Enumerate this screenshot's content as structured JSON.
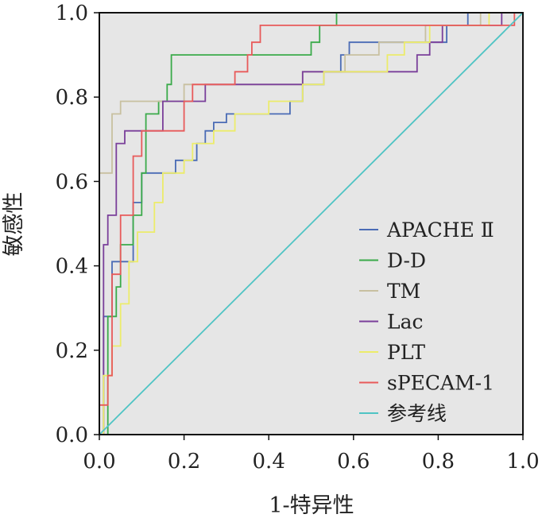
{
  "chart_data": {
    "type": "line",
    "title": "",
    "xlabel": "1-特异性",
    "ylabel": "敏感性",
    "xlim": [
      0,
      1
    ],
    "ylim": [
      0,
      1
    ],
    "xticks": [
      "0.0",
      "0.2",
      "0.4",
      "0.6",
      "0.8",
      "1.0"
    ],
    "yticks": [
      "0.0",
      "0.2",
      "0.4",
      "0.6",
      "0.8",
      "1.0"
    ],
    "grid": false,
    "legend_position": "lower-right",
    "series": [
      {
        "name": "APACHE Ⅱ",
        "color": "#4a6bb5",
        "points": [
          [
            0,
            0
          ],
          [
            0.01,
            0
          ],
          [
            0.01,
            0.28
          ],
          [
            0.03,
            0.28
          ],
          [
            0.03,
            0.41
          ],
          [
            0.08,
            0.41
          ],
          [
            0.08,
            0.55
          ],
          [
            0.1,
            0.55
          ],
          [
            0.1,
            0.62
          ],
          [
            0.18,
            0.62
          ],
          [
            0.18,
            0.65
          ],
          [
            0.23,
            0.65
          ],
          [
            0.23,
            0.69
          ],
          [
            0.25,
            0.69
          ],
          [
            0.25,
            0.72
          ],
          [
            0.27,
            0.72
          ],
          [
            0.27,
            0.74
          ],
          [
            0.3,
            0.74
          ],
          [
            0.3,
            0.76
          ],
          [
            0.45,
            0.76
          ],
          [
            0.45,
            0.79
          ],
          [
            0.48,
            0.79
          ],
          [
            0.48,
            0.83
          ],
          [
            0.53,
            0.83
          ],
          [
            0.53,
            0.86
          ],
          [
            0.57,
            0.86
          ],
          [
            0.57,
            0.9
          ],
          [
            0.59,
            0.9
          ],
          [
            0.59,
            0.93
          ],
          [
            0.82,
            0.93
          ],
          [
            0.82,
            0.97
          ],
          [
            0.87,
            0.97
          ],
          [
            0.87,
            1
          ],
          [
            1,
            1
          ]
        ]
      },
      {
        "name": "D-D",
        "color": "#3aaa4a",
        "points": [
          [
            0,
            0
          ],
          [
            0.02,
            0
          ],
          [
            0.02,
            0.28
          ],
          [
            0.04,
            0.28
          ],
          [
            0.04,
            0.35
          ],
          [
            0.05,
            0.35
          ],
          [
            0.05,
            0.45
          ],
          [
            0.08,
            0.45
          ],
          [
            0.08,
            0.52
          ],
          [
            0.1,
            0.52
          ],
          [
            0.1,
            0.62
          ],
          [
            0.11,
            0.62
          ],
          [
            0.11,
            0.76
          ],
          [
            0.14,
            0.76
          ],
          [
            0.14,
            0.79
          ],
          [
            0.16,
            0.79
          ],
          [
            0.16,
            0.83
          ],
          [
            0.17,
            0.83
          ],
          [
            0.17,
            0.9
          ],
          [
            0.5,
            0.9
          ],
          [
            0.5,
            0.93
          ],
          [
            0.52,
            0.93
          ],
          [
            0.52,
            0.97
          ],
          [
            0.56,
            0.97
          ],
          [
            0.56,
            1
          ],
          [
            1,
            1
          ]
        ]
      },
      {
        "name": "TM",
        "color": "#c8c0a0",
        "points": [
          [
            0,
            0
          ],
          [
            0,
            0.62
          ],
          [
            0.03,
            0.62
          ],
          [
            0.03,
            0.76
          ],
          [
            0.05,
            0.76
          ],
          [
            0.05,
            0.79
          ],
          [
            0.2,
            0.79
          ],
          [
            0.2,
            0.83
          ],
          [
            0.48,
            0.83
          ],
          [
            0.48,
            0.86
          ],
          [
            0.58,
            0.86
          ],
          [
            0.58,
            0.9
          ],
          [
            0.66,
            0.9
          ],
          [
            0.66,
            0.93
          ],
          [
            0.77,
            0.93
          ],
          [
            0.77,
            0.97
          ],
          [
            0.9,
            0.97
          ],
          [
            0.9,
            1
          ],
          [
            1,
            1
          ]
        ]
      },
      {
        "name": "Lac",
        "color": "#7a3f9a",
        "points": [
          [
            0,
            0
          ],
          [
            0.01,
            0
          ],
          [
            0.01,
            0.45
          ],
          [
            0.02,
            0.45
          ],
          [
            0.02,
            0.52
          ],
          [
            0.04,
            0.52
          ],
          [
            0.04,
            0.69
          ],
          [
            0.06,
            0.69
          ],
          [
            0.06,
            0.72
          ],
          [
            0.15,
            0.72
          ],
          [
            0.15,
            0.79
          ],
          [
            0.25,
            0.79
          ],
          [
            0.25,
            0.83
          ],
          [
            0.48,
            0.83
          ],
          [
            0.48,
            0.86
          ],
          [
            0.75,
            0.86
          ],
          [
            0.75,
            0.9
          ],
          [
            0.78,
            0.9
          ],
          [
            0.78,
            0.93
          ],
          [
            0.81,
            0.93
          ],
          [
            0.81,
            0.97
          ],
          [
            0.95,
            0.97
          ],
          [
            0.95,
            1
          ],
          [
            1,
            1
          ]
        ]
      },
      {
        "name": "PLT",
        "color": "#ecec6a",
        "points": [
          [
            0,
            0
          ],
          [
            0.01,
            0
          ],
          [
            0.01,
            0.14
          ],
          [
            0.03,
            0.14
          ],
          [
            0.03,
            0.21
          ],
          [
            0.05,
            0.21
          ],
          [
            0.05,
            0.31
          ],
          [
            0.07,
            0.31
          ],
          [
            0.07,
            0.41
          ],
          [
            0.09,
            0.41
          ],
          [
            0.09,
            0.48
          ],
          [
            0.13,
            0.48
          ],
          [
            0.13,
            0.55
          ],
          [
            0.15,
            0.55
          ],
          [
            0.15,
            0.62
          ],
          [
            0.2,
            0.62
          ],
          [
            0.2,
            0.65
          ],
          [
            0.22,
            0.65
          ],
          [
            0.22,
            0.69
          ],
          [
            0.27,
            0.69
          ],
          [
            0.27,
            0.72
          ],
          [
            0.32,
            0.72
          ],
          [
            0.32,
            0.76
          ],
          [
            0.4,
            0.76
          ],
          [
            0.4,
            0.79
          ],
          [
            0.48,
            0.79
          ],
          [
            0.48,
            0.83
          ],
          [
            0.53,
            0.83
          ],
          [
            0.53,
            0.86
          ],
          [
            0.68,
            0.86
          ],
          [
            0.68,
            0.9
          ],
          [
            0.72,
            0.9
          ],
          [
            0.72,
            0.93
          ],
          [
            0.78,
            0.93
          ],
          [
            0.78,
            0.97
          ],
          [
            0.92,
            0.97
          ],
          [
            0.92,
            1
          ],
          [
            1,
            1
          ]
        ]
      },
      {
        "name": "sPECAM-1",
        "color": "#e85a5a",
        "points": [
          [
            0,
            0
          ],
          [
            0,
            0.07
          ],
          [
            0.02,
            0.07
          ],
          [
            0.02,
            0.14
          ],
          [
            0.03,
            0.14
          ],
          [
            0.03,
            0.38
          ],
          [
            0.05,
            0.38
          ],
          [
            0.05,
            0.52
          ],
          [
            0.08,
            0.52
          ],
          [
            0.08,
            0.66
          ],
          [
            0.1,
            0.66
          ],
          [
            0.1,
            0.72
          ],
          [
            0.2,
            0.72
          ],
          [
            0.2,
            0.79
          ],
          [
            0.22,
            0.79
          ],
          [
            0.22,
            0.83
          ],
          [
            0.32,
            0.83
          ],
          [
            0.32,
            0.86
          ],
          [
            0.35,
            0.86
          ],
          [
            0.35,
            0.9
          ],
          [
            0.36,
            0.9
          ],
          [
            0.36,
            0.93
          ],
          [
            0.38,
            0.93
          ],
          [
            0.38,
            0.97
          ],
          [
            0.98,
            0.97
          ],
          [
            0.98,
            1
          ],
          [
            1,
            1
          ]
        ]
      },
      {
        "name": "参考线",
        "color": "#4fc4c4",
        "points": [
          [
            0,
            0
          ],
          [
            1,
            1
          ]
        ]
      }
    ]
  }
}
